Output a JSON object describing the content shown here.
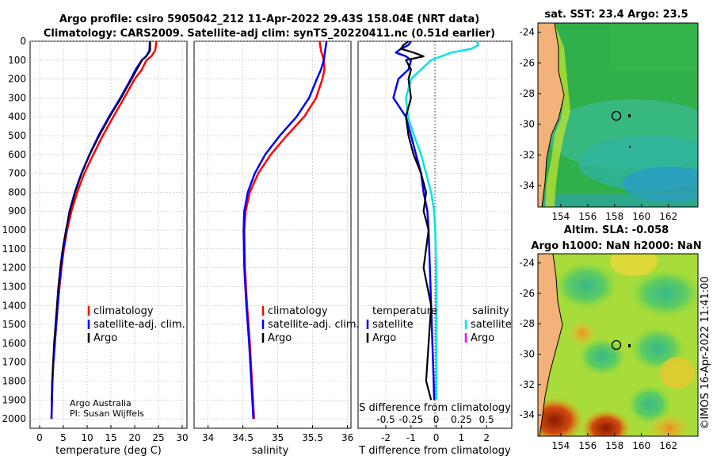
{
  "title": {
    "line1": "Argo profile: csiro 5905042_212 11-Apr-2022 29.43S 158.04E (NRT data)",
    "line2": "Climatology: CARS2009. Satellite-adj clim: synTS_20220411.nc (0.51d earlier)"
  },
  "colors": {
    "red": "#ff0000",
    "blue": "#0000ff",
    "black": "#000000",
    "cyan": "#00e5e5",
    "magenta": "#ff00ff"
  },
  "credit": {
    "org": "Argo Australia",
    "pi": "PI: Susan Wijffels"
  },
  "timestamp": "©IMOS 16-Apr-2022 11:41:00",
  "chart_data": [
    {
      "type": "line",
      "title": "",
      "xlabel": "temperature (deg C)",
      "ylabel": "",
      "xlim": [
        -2,
        31
      ],
      "ylim": [
        2050,
        0
      ],
      "xticks": [
        "0",
        "5",
        "10",
        "15",
        "20",
        "25",
        "30"
      ],
      "yticks": [
        "0",
        "100",
        "200",
        "300",
        "400",
        "500",
        "600",
        "700",
        "800",
        "900",
        "1000",
        "1100",
        "1200",
        "1300",
        "1400",
        "1500",
        "1600",
        "1700",
        "1800",
        "1900",
        "2000"
      ],
      "depth": [
        0,
        50,
        80,
        100,
        150,
        200,
        300,
        400,
        500,
        600,
        700,
        800,
        900,
        1000,
        1100,
        1200,
        1300,
        1400,
        1500,
        1600,
        1700,
        1800,
        1900,
        2000
      ],
      "series": [
        {
          "name": "climatology",
          "values": [
            24.6,
            24.3,
            23.5,
            22.5,
            21.5,
            20.0,
            17.8,
            15.5,
            13.3,
            11.3,
            9.4,
            7.9,
            6.7,
            5.8,
            5.1,
            4.6,
            4.2,
            3.8,
            3.5,
            3.2,
            2.9,
            2.7,
            2.6,
            2.5
          ]
        },
        {
          "name": "satellite-adj. clim",
          "values": [
            23.2,
            23.1,
            22.4,
            21.5,
            20.2,
            19.2,
            17.0,
            14.6,
            12.4,
            10.5,
            8.8,
            7.4,
            6.3,
            5.6,
            5.0,
            4.5,
            4.1,
            3.8,
            3.5,
            3.2,
            2.9,
            2.7,
            2.6,
            2.5
          ]
        },
        {
          "name": "Argo",
          "values": [
            23.3,
            23.3,
            22.5,
            21.6,
            20.5,
            19.4,
            17.2,
            14.8,
            12.6,
            10.6,
            8.9,
            7.5,
            6.4,
            5.5,
            4.8,
            4.3,
            3.9,
            3.6,
            3.3,
            3.0,
            2.8,
            2.6,
            2.5,
            null
          ]
        }
      ],
      "legend": [
        "climatology",
        "satellite-adj. clim.",
        "Argo"
      ]
    },
    {
      "type": "line",
      "xlabel": "salinity",
      "xlim": [
        33.8,
        36.05
      ],
      "ylim": [
        2050,
        0
      ],
      "xticks": [
        "34",
        "34.5",
        "35",
        "35.5",
        "36"
      ],
      "depth": [
        0,
        50,
        100,
        150,
        200,
        300,
        400,
        500,
        600,
        700,
        800,
        900,
        1000,
        1200,
        1400,
        1600,
        1800,
        2000
      ],
      "series": [
        {
          "name": "climatology",
          "values": [
            35.6,
            35.62,
            35.66,
            35.67,
            35.64,
            35.55,
            35.38,
            35.13,
            34.9,
            34.72,
            34.6,
            34.54,
            34.52,
            34.53,
            34.56,
            34.6,
            34.63,
            34.66
          ]
        },
        {
          "name": "satellite-adj. clim",
          "values": [
            35.7,
            35.68,
            35.66,
            35.62,
            35.56,
            35.45,
            35.27,
            35.03,
            34.82,
            34.67,
            34.57,
            34.52,
            34.51,
            34.52,
            34.55,
            34.59,
            34.62,
            34.65
          ]
        }
      ],
      "legend": [
        "climatology",
        "satellite-adj. clim.",
        "Argo"
      ]
    },
    {
      "type": "line",
      "xlabel": "T difference from climatology",
      "xlabel2": "S difference from climatology",
      "xlim": [
        -3.1,
        3.0
      ],
      "ylim": [
        2050,
        0
      ],
      "xticks": [
        "-2",
        "-1",
        "0",
        "1",
        "2"
      ],
      "xticks2": [
        "-0.5",
        "-0.25",
        "0",
        "0.25",
        "0.5"
      ],
      "depth": [
        0,
        20,
        40,
        60,
        80,
        100,
        150,
        200,
        300,
        400,
        500,
        600,
        700,
        800,
        900,
        1000,
        1200,
        1400,
        1600,
        1800,
        1900
      ],
      "series": [
        {
          "name": "temperature satellite",
          "values": [
            -1.0,
            -1.1,
            -1.4,
            -1.6,
            -1.2,
            -1.0,
            -1.1,
            -1.5,
            -1.7,
            -1.2,
            -1.0,
            -0.8,
            -0.6,
            -0.5,
            -0.35,
            -0.3,
            -0.25,
            -0.2,
            -0.15,
            -0.1,
            -0.08
          ]
        },
        {
          "name": "temperature Argo",
          "values": [
            -1.1,
            -1.3,
            -1.4,
            -0.9,
            -0.5,
            -1.2,
            -1.0,
            -1.1,
            -1.0,
            -1.2,
            -1.1,
            -0.9,
            -0.6,
            -0.4,
            -0.5,
            -0.3,
            -0.5,
            -0.2,
            -0.3,
            -0.4,
            -0.2
          ]
        },
        {
          "name": "salinity satellite",
          "values": [
            0.4,
            0.42,
            0.35,
            0.15,
            0.05,
            -0.05,
            -0.15,
            -0.25,
            -0.3,
            -0.28,
            -0.22,
            -0.15,
            -0.1,
            -0.05,
            -0.02,
            -0.01,
            0,
            0,
            0,
            0,
            0
          ]
        }
      ],
      "legend_left_title": "temperature",
      "legend_right_title": "salinity",
      "legend_left": [
        "satellite",
        "Argo"
      ],
      "legend_right": [
        "satellite",
        "Argo"
      ]
    },
    {
      "type": "heatmap",
      "title": "sat. SST: 23.4 Argo: 23.5",
      "xlim": [
        152.3,
        164.2
      ],
      "ylim": [
        -35.4,
        -23.4
      ],
      "xticks": [
        "154",
        "156",
        "158",
        "160",
        "162"
      ],
      "yticks": [
        "-24",
        "-26",
        "-28",
        "-30",
        "-32",
        "-34"
      ],
      "marker": {
        "lon": 158.04,
        "lat": -29.43
      }
    },
    {
      "type": "heatmap",
      "title": "Altim. SLA: -0.058",
      "title2": "Argo h1000: NaN h2000: NaN",
      "xlim": [
        152.3,
        164.2
      ],
      "ylim": [
        -35.4,
        -23.4
      ],
      "xticks": [
        "154",
        "156",
        "158",
        "160",
        "162"
      ],
      "yticks": [
        "-24",
        "-26",
        "-28",
        "-30",
        "-32",
        "-34"
      ],
      "marker": {
        "lon": 158.04,
        "lat": -29.43
      }
    }
  ]
}
